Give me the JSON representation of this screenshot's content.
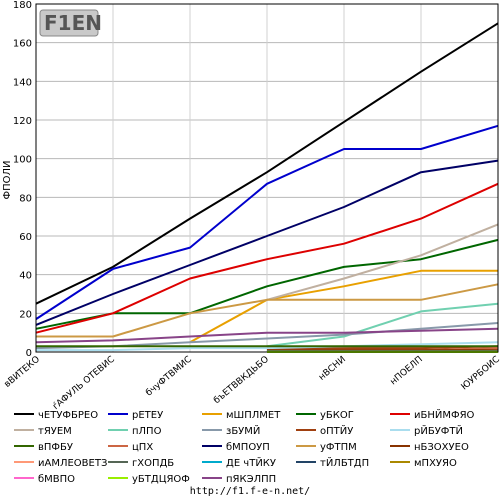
{
  "logo_text": "F1EN",
  "footer_url": "http://f1.f-e-n.net/",
  "chart_data": {
    "type": "line",
    "title": "",
    "ylabel": "ФПОЛИ",
    "xlabel": "",
    "ylim": [
      0,
      180
    ],
    "yticks": [
      0,
      20,
      40,
      60,
      80,
      100,
      120,
      140,
      160,
      180
    ],
    "grid": true,
    "legend_position": "bottom",
    "categories": [
      "вВИТЕКО",
      "ѓАФУЛЬ ОТЕВИС",
      "бчуФТВМИС",
      "бъЕТВВКДЬБО",
      "нВСНИ",
      "нПОЕЛП",
      "ЮУРБОИС"
    ],
    "series": [
      {
        "name": "чЕТУФБРЕО",
        "color": "#000000",
        "values": [
          25,
          44,
          69,
          93,
          119,
          145,
          170
        ]
      },
      {
        "name": "рЕТЕУ",
        "color": "#0000cc",
        "values": [
          17,
          43,
          54,
          87,
          105,
          105,
          117
        ]
      },
      {
        "name": "мШПЛМЕТ",
        "color": "#e8a000",
        "values": [
          null,
          null,
          5,
          27,
          34,
          42,
          42
        ]
      },
      {
        "name": "уБКОГ",
        "color": "#006600",
        "values": [
          12,
          20,
          20,
          34,
          44,
          48,
          58
        ]
      },
      {
        "name": "иБНЙМФЯО",
        "color": "#dd0000",
        "values": [
          10,
          20,
          38,
          48,
          56,
          69,
          87
        ]
      },
      {
        "name": "тЯУЕМ",
        "color": "#c0b0a0",
        "values": [
          null,
          null,
          null,
          27,
          38,
          50,
          66
        ]
      },
      {
        "name": "пЛПО",
        "color": "#70d0b0",
        "values": [
          null,
          null,
          null,
          3,
          8,
          21,
          25
        ]
      },
      {
        "name": "зБУМЙ",
        "color": "#8899aa",
        "values": [
          2,
          3,
          5,
          7,
          9,
          12,
          15
        ]
      },
      {
        "name": "оПТЙУ",
        "color": "#a04010",
        "values": [
          null,
          null,
          null,
          2,
          2,
          2,
          3
        ]
      },
      {
        "name": "рЙБУФТЙ",
        "color": "#aaddee",
        "values": [
          1,
          1,
          2,
          2,
          3,
          4,
          5
        ]
      },
      {
        "name": "вПФБУ",
        "color": "#336600",
        "values": [
          3,
          3,
          3,
          3,
          3,
          3,
          3
        ]
      },
      {
        "name": "цПХ",
        "color": "#cc6644",
        "values": [
          null,
          null,
          null,
          1,
          1,
          1,
          2
        ]
      },
      {
        "name": "бМПОУП",
        "color": "#000066",
        "values": [
          14,
          30,
          45,
          60,
          75,
          93,
          99
        ]
      },
      {
        "name": "уФТПМ",
        "color": "#cc9944",
        "values": [
          8,
          8,
          20,
          27,
          27,
          27,
          35
        ]
      },
      {
        "name": "нБЗОХУЕО",
        "color": "#883300",
        "values": [
          null,
          null,
          null,
          1,
          1,
          1,
          1
        ]
      },
      {
        "name": "иАМЛЕОВЕТЗ",
        "color": "#ff9977",
        "values": [
          null,
          null,
          null,
          0.5,
          0.5,
          0.5,
          0.5
        ]
      },
      {
        "name": "гХОПДБ",
        "color": "#556655",
        "values": [
          null,
          null,
          null,
          0.5,
          0.5,
          0.5,
          0.5
        ]
      },
      {
        "name": "ДЕ чТЙКУ",
        "color": "#00aacc",
        "values": [
          null,
          null,
          null,
          0.3,
          0.3,
          0.3,
          0.3
        ]
      },
      {
        "name": "тЙЛБТДП",
        "color": "#224466",
        "values": [
          null,
          null,
          null,
          0.3,
          0.3,
          0.3,
          0.3
        ]
      },
      {
        "name": "мПХУЯО",
        "color": "#aa8800",
        "values": [
          null,
          null,
          null,
          0.2,
          0.2,
          0.2,
          0.2
        ]
      },
      {
        "name": "бМВПО",
        "color": "#ff66cc",
        "values": [
          null,
          null,
          null,
          0,
          0,
          0,
          0
        ]
      },
      {
        "name": "уБТДЦЯОФ",
        "color": "#99ee00",
        "values": [
          null,
          null,
          null,
          0,
          0,
          0,
          0
        ]
      },
      {
        "name": "пЯКЭЛПП",
        "color": "#884488",
        "values": [
          5,
          6,
          8,
          10,
          10,
          11,
          12
        ]
      }
    ]
  }
}
